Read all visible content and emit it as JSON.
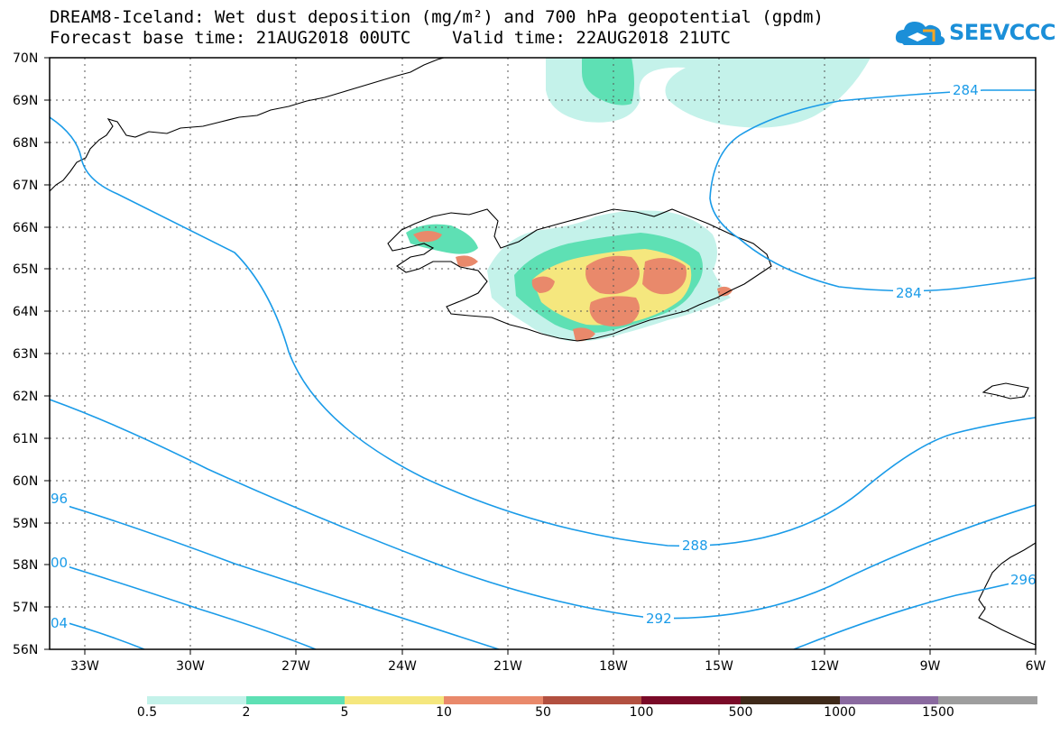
{
  "title": {
    "line1": "DREAM8-Iceland: Wet dust deposition (mg/m²) and 700 hPa geopotential (gpdm)",
    "line2": "Forecast base time: 21AUG2018 00UTC    Valid time: 22AUG2018 21UTC"
  },
  "logo": {
    "text": "SEEVCCC",
    "icon": "cloud-icon",
    "color": "#1b8fd8"
  },
  "map": {
    "lat_labels": [
      "70N",
      "69N",
      "68N",
      "67N",
      "66N",
      "65N",
      "64N",
      "63N",
      "62N",
      "61N",
      "60N",
      "59N",
      "58N",
      "57N",
      "56N"
    ],
    "lon_labels": [
      "33W",
      "30W",
      "27W",
      "24W",
      "21W",
      "18W",
      "15W",
      "12W",
      "9W",
      "6W"
    ],
    "contour_labels": [
      {
        "text": "284",
        "lon": -9.5,
        "lat": 69.2
      },
      {
        "text": "284",
        "lon": -12.3,
        "lat": 64.45
      },
      {
        "text": "288",
        "lon": -16.9,
        "lat": 58.5
      },
      {
        "text": "292",
        "lon": -18.7,
        "lat": 56.75
      },
      {
        "text": "96",
        "lon": -33.9,
        "lat": 59.6
      },
      {
        "text": "00",
        "lon": -33.9,
        "lat": 58.0
      },
      {
        "text": "04",
        "lon": -33.9,
        "lat": 56.6
      },
      {
        "text": "296",
        "lon": -6.1,
        "lat": 57.6
      }
    ],
    "contour_color": "#1a9be8",
    "coastline_color": "#000000"
  },
  "legend": {
    "labels": [
      "0.5",
      "2",
      "5",
      "10",
      "50",
      "100",
      "500",
      "1000",
      "1500"
    ],
    "colors": [
      "#c4f2ea",
      "#5ee0b4",
      "#f5e77e",
      "#e9896b",
      "#b25040",
      "#7a0a28",
      "#3f2a1a",
      "#8a6aa0",
      "#9e9e9e"
    ]
  }
}
